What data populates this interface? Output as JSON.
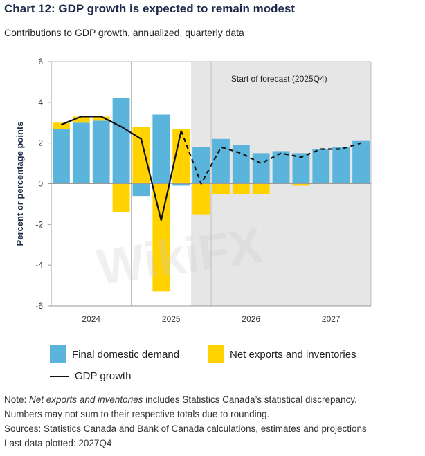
{
  "chart_data": {
    "type": "bar",
    "title": "Chart 12: GDP growth is expected to remain modest",
    "subtitle": "Contributions to GDP growth, annualized, quarterly data",
    "ylabel": "Percent or percentage points",
    "ylim": [
      -6,
      6
    ],
    "yticks": [
      "6",
      "4",
      "2",
      "0",
      "-2",
      "-4",
      "-6"
    ],
    "year_labels": [
      "2024",
      "2025",
      "2026",
      "2027"
    ],
    "quarters": [
      "2024Q1",
      "2024Q2",
      "2024Q3",
      "2024Q4",
      "2025Q1",
      "2025Q2",
      "2025Q3",
      "2025Q4",
      "2026Q1",
      "2026Q2",
      "2026Q3",
      "2026Q4",
      "2027Q1",
      "2027Q2",
      "2027Q3",
      "2027Q4"
    ],
    "forecast_start_index": 7,
    "forecast_label": "Start of forecast (2025Q4)",
    "series": [
      {
        "name": "Final domestic demand",
        "color": "#5bb4dc",
        "values": [
          2.7,
          3.0,
          3.1,
          4.2,
          -0.6,
          3.4,
          -0.1,
          1.8,
          2.2,
          1.9,
          1.5,
          1.6,
          1.5,
          1.7,
          1.8,
          2.1
        ]
      },
      {
        "name": "Net exports and inventories",
        "color": "#ffd200",
        "values": [
          0.3,
          0.3,
          0.2,
          -1.4,
          2.8,
          -5.3,
          2.7,
          -1.5,
          -0.5,
          -0.5,
          -0.5,
          0.0,
          -0.1,
          0.0,
          0.0,
          0.0
        ]
      },
      {
        "name": "GDP growth",
        "color": "#111111",
        "values": [
          2.9,
          3.3,
          3.3,
          2.8,
          2.2,
          -1.8,
          2.6,
          0.0,
          1.8,
          1.5,
          1.0,
          1.5,
          1.3,
          1.7,
          1.7,
          2.0
        ]
      }
    ]
  },
  "notes": {
    "line1_prefix": "Note: ",
    "line1_italic": "Net exports and inventories",
    "line1_suffix": " includes Statistics Canada’s statistical discrepancy.",
    "line2": "Numbers may not sum to their respective totals due to rounding.",
    "line3": "Sources: Statistics Canada and Bank of Canada calculations, estimates and projections",
    "line4": "Last data plotted: 2027Q4"
  },
  "watermark": "WikiFX"
}
